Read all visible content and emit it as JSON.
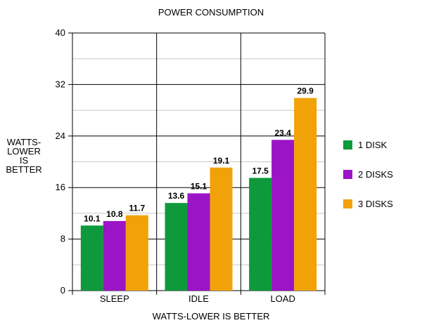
{
  "chart_data": {
    "type": "bar",
    "title": "POWER CONSUMPTION",
    "xlabel": "WATTS-LOWER IS BETTER",
    "ylabel_lines": [
      "WATTS-",
      "LOWER",
      "IS",
      "BETTER"
    ],
    "categories": [
      "SLEEP",
      "IDLE",
      "LOAD"
    ],
    "series": [
      {
        "name": "1 DISK",
        "color": "#0f9a3c",
        "values": [
          10.1,
          13.6,
          17.5
        ]
      },
      {
        "name": "2 DISKS",
        "color": "#9b14c7",
        "values": [
          10.8,
          15.1,
          23.4
        ]
      },
      {
        "name": "3 DISKS",
        "color": "#f2a20a",
        "values": [
          11.7,
          19.1,
          29.9
        ]
      }
    ],
    "ylim": [
      0,
      40
    ],
    "yticks": [
      0,
      8,
      16,
      24,
      32,
      40
    ],
    "grid": true,
    "legend_position": "right"
  }
}
